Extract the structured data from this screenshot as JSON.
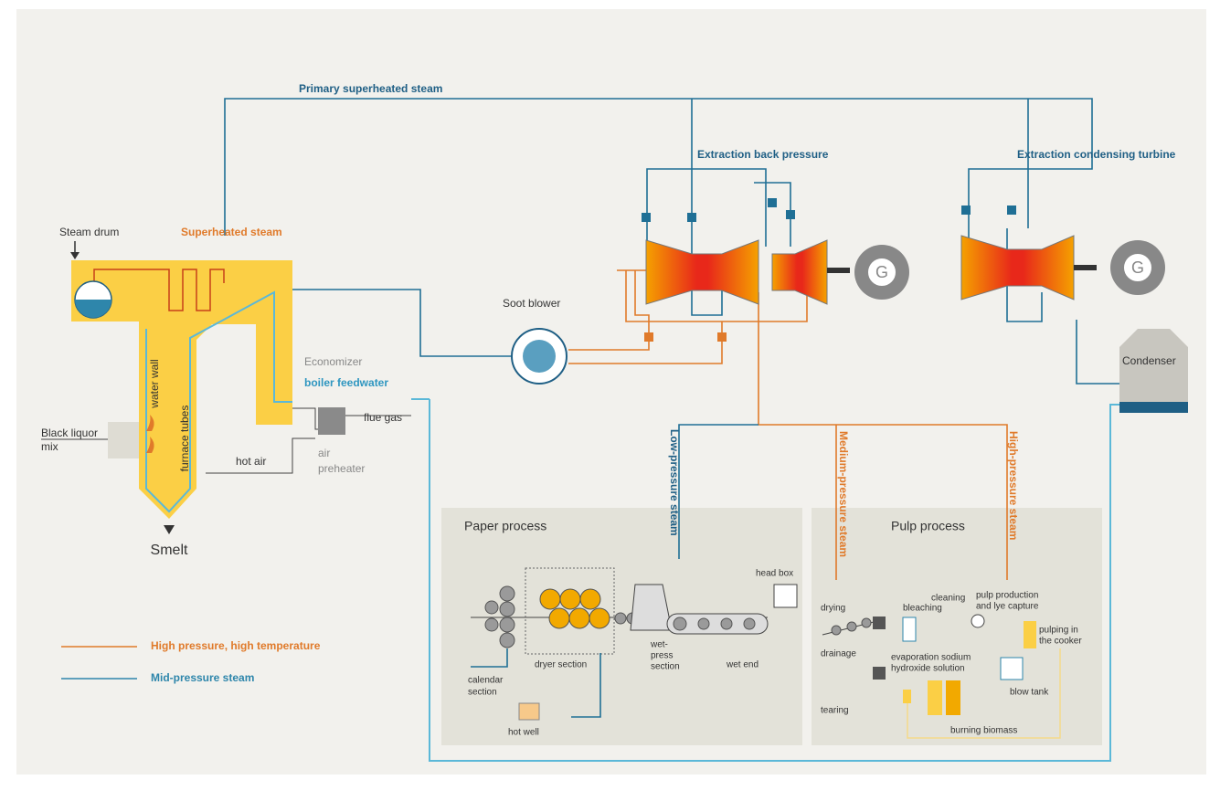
{
  "steam_lines": {
    "primary": "Primary superheated steam",
    "extraction_back_pressure": "Extraction back pressure",
    "extraction_condensing_turbine": "Extraction condensing turbine"
  },
  "boiler": {
    "steam_drum": "Steam drum",
    "superheated_steam": "Superheated steam",
    "water_wall": "water wall",
    "furnace_tubes": "furnace tubes",
    "black_liquor_mix": [
      "Black liquor",
      "mix"
    ],
    "smelt": "Smelt",
    "economizer": "Economizer",
    "boiler_feedwater": "boiler feedwater",
    "flue_gas": "flue gas",
    "hot_air": "hot air",
    "air_preheater": [
      "air",
      "preheater"
    ]
  },
  "soot_blower": "Soot blower",
  "generators": [
    "G",
    "G"
  ],
  "condenser": "Condenser",
  "supply": {
    "low": "Low-pressure steam",
    "medium": "Medium-pressure steam",
    "high": "High-pressure steam"
  },
  "paper_process": {
    "title": "Paper process",
    "head_box": "head box",
    "calendar_section": [
      "calendar",
      "section"
    ],
    "dryer_section": "dryer section",
    "wet_press_section": [
      "wet-",
      "press",
      "section"
    ],
    "wet_end": "wet end",
    "hot_well": "hot well"
  },
  "pulp_process": {
    "title": "Pulp process",
    "drying": "drying",
    "drainage": "drainage",
    "tearing": "tearing",
    "bleaching": "bleaching",
    "cleaning": "cleaning",
    "pulp_production": [
      "pulp production",
      "and lye capture"
    ],
    "pulping": [
      "pulping in",
      "the cooker"
    ],
    "evaporation": [
      "evaporation sodium",
      "hydroxide solution"
    ],
    "blow_tank": "blow tank",
    "burning_biomass": "burning biomass"
  },
  "legend": [
    {
      "label": "High pressure, high temperature",
      "color": "#e07a2a"
    },
    {
      "label": "Mid-pressure steam",
      "color": "#2e86ab"
    }
  ]
}
